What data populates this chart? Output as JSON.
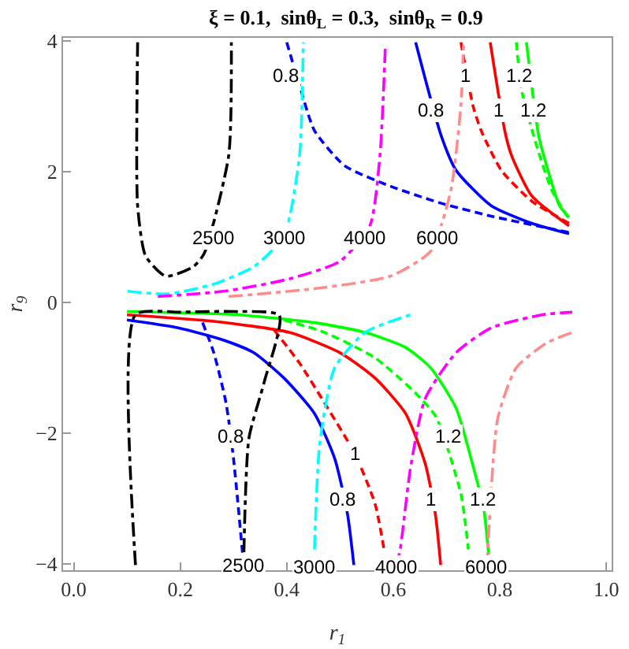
{
  "chart_data": {
    "type": "line",
    "title": "ξ = 0.1,  sinθ$_{L}$ = 0.3,  sinθ$_{R}$ = 0.9",
    "xlabel": "r$_{1}$",
    "ylabel": "r$_{9}$",
    "xlim": [
      -0.02,
      1.01
    ],
    "ylim": [
      -4.1,
      4.05
    ],
    "xticks": [
      {
        "value": 0,
        "label": "0.0"
      },
      {
        "value": 0.2,
        "label": "0.2"
      },
      {
        "value": 0.4,
        "label": "0.4"
      },
      {
        "value": 0.6,
        "label": "0.6"
      },
      {
        "value": 0.8,
        "label": "0.8"
      },
      {
        "value": 1,
        "label": "1.0"
      }
    ],
    "yticks": [
      {
        "value": -4,
        "label": "−4"
      },
      {
        "value": -2,
        "label": "−2"
      },
      {
        "value": 0,
        "label": "0"
      },
      {
        "value": 2,
        "label": "2"
      },
      {
        "value": 4,
        "label": "4"
      }
    ],
    "legend": false,
    "series": [
      {
        "color": "#0000ff",
        "line_style": "solid",
        "x": [
          0.642,
          0.69,
          0.718,
          0.784,
          0.86,
          0.93
        ],
        "values": [
          3.98,
          2.55,
          2.02,
          1.48,
          1.21,
          1.05
        ]
      },
      {
        "color": "#0000ff",
        "line_style": "dashed",
        "x": [
          0.4,
          0.424,
          0.452,
          0.509,
          0.594,
          0.689,
          0.784,
          0.93
        ],
        "values": [
          3.98,
          3.32,
          2.63,
          2.09,
          1.78,
          1.52,
          1.32,
          1.07
        ]
      },
      {
        "color": "#ff0000",
        "line_style": "dashed",
        "x": [
          0.727,
          0.75,
          0.765,
          0.803,
          0.86,
          0.93
        ],
        "values": [
          3.98,
          3.0,
          2.63,
          2.02,
          1.55,
          1.21
        ]
      },
      {
        "color": "#ff0000",
        "line_style": "solid",
        "x": [
          0.782,
          0.81,
          0.822,
          0.86,
          0.93
        ],
        "values": [
          3.98,
          2.6,
          2.25,
          1.63,
          1.17
        ]
      },
      {
        "color": "#00ff00",
        "line_style": "dashed",
        "x": [
          0.831,
          0.841,
          0.869,
          0.898,
          0.93
        ],
        "values": [
          3.98,
          3.25,
          2.4,
          1.71,
          1.28
        ]
      },
      {
        "color": "#00ff00",
        "line_style": "solid",
        "x": [
          0.85,
          0.873,
          0.888,
          0.912,
          0.93
        ],
        "values": [
          3.98,
          2.55,
          2.09,
          1.48,
          1.3
        ]
      },
      {
        "color": "#000000",
        "line_style": "dashdot",
        "x": [
          0.12,
          0.12,
          0.135,
          0.173,
          0.225,
          0.245,
          0.291,
          0.296
        ],
        "values": [
          3.98,
          1.48,
          0.71,
          0.4,
          0.55,
          0.75,
          2.25,
          3.98
        ]
      },
      {
        "color": "#00ffff",
        "line_style": "dashdot",
        "x": [
          0.101,
          0.177,
          0.263,
          0.339,
          0.395,
          0.424,
          0.431
        ],
        "values": [
          0.17,
          0.13,
          0.28,
          0.55,
          1.02,
          2.25,
          3.98
        ]
      },
      {
        "color": "#ff00ff",
        "line_style": "dashdot",
        "x": [
          0.158,
          0.282,
          0.405,
          0.5,
          0.556,
          0.575,
          0.585
        ],
        "values": [
          0.09,
          0.17,
          0.36,
          0.63,
          1.17,
          2.25,
          3.9
        ]
      },
      {
        "color": "#ff8c8c",
        "line_style": "dashdot",
        "x": [
          0.291,
          0.452,
          0.594,
          0.67,
          0.708,
          0.727,
          0.732
        ],
        "values": [
          0.09,
          0.21,
          0.4,
          0.78,
          1.71,
          3.02,
          3.98
        ]
      },
      {
        "color": "#0000ff",
        "line_style": "solid",
        "x": [
          0.1,
          0.196,
          0.282,
          0.338,
          0.395,
          0.452,
          0.49,
          0.514,
          0.526
        ],
        "values": [
          -0.27,
          -0.39,
          -0.58,
          -0.77,
          -1.16,
          -1.7,
          -2.39,
          -3.24,
          -4.02
        ]
      },
      {
        "color": "#0000ff",
        "line_style": "dashed",
        "x": [
          0.242,
          0.263,
          0.286,
          0.3,
          0.319
        ],
        "values": [
          -0.31,
          -0.77,
          -1.54,
          -2.39,
          -4.02
        ]
      },
      {
        "color": "#ff0000",
        "line_style": "solid",
        "x": [
          0.1,
          0.263,
          0.405,
          0.5,
          0.566,
          0.623,
          0.66,
          0.679,
          0.689
        ],
        "values": [
          -0.19,
          -0.29,
          -0.46,
          -0.77,
          -1.16,
          -1.7,
          -2.47,
          -3.24,
          -4.02
        ]
      },
      {
        "color": "#ff0000",
        "line_style": "dashed",
        "x": [
          0.376,
          0.424,
          0.471,
          0.528,
          0.566,
          0.583
        ],
        "values": [
          -0.42,
          -0.93,
          -1.54,
          -2.32,
          -3.09,
          -3.8
        ]
      },
      {
        "color": "#00ff00",
        "line_style": "solid",
        "x": [
          0.1,
          0.31,
          0.452,
          0.547,
          0.623,
          0.67,
          0.718,
          0.746,
          0.77,
          0.779
        ],
        "values": [
          -0.14,
          -0.19,
          -0.31,
          -0.46,
          -0.69,
          -1.0,
          -1.62,
          -2.39,
          -3.17,
          -3.86
        ]
      },
      {
        "color": "#00ff00",
        "line_style": "dashed",
        "x": [
          0.395,
          0.471,
          0.566,
          0.642,
          0.68,
          0.727,
          0.741
        ],
        "values": [
          -0.27,
          -0.46,
          -0.85,
          -1.39,
          -1.75,
          -2.93,
          -3.78
        ]
      },
      {
        "color": "#000000",
        "line_style": "dashdot",
        "x": [
          0.116,
          0.116,
          0.2,
          0.3,
          0.386,
          0.357,
          0.329,
          0.319
        ],
        "values": [
          -4.02,
          -0.19,
          -0.15,
          -0.14,
          -0.2,
          -1.24,
          -2.08,
          -4.02
        ]
      },
      {
        "color": "#00ffff",
        "line_style": "dashdot",
        "x": [
          0.452,
          0.462,
          0.49,
          0.547,
          0.632
        ],
        "values": [
          -3.78,
          -2.16,
          -1.0,
          -0.46,
          -0.19
        ]
      },
      {
        "color": "#ff00ff",
        "line_style": "dashdot",
        "x": [
          0.605,
          0.613,
          0.632,
          0.66,
          0.718,
          0.784,
          0.879,
          0.936
        ],
        "values": [
          -4.05,
          -3.78,
          -2.55,
          -1.47,
          -0.77,
          -0.39,
          -0.19,
          -0.15
        ]
      },
      {
        "color": "#ff8c8c",
        "line_style": "dashdot",
        "x": [
          0.776,
          0.779,
          0.796,
          0.831,
          0.888,
          0.936
        ],
        "values": [
          -4.05,
          -3.55,
          -1.78,
          -1.0,
          -0.62,
          -0.46
        ]
      }
    ],
    "annotations": [
      {
        "text": "0.8",
        "x": 0.4,
        "y": 3.48
      },
      {
        "text": "0.8",
        "x": 0.67,
        "y": 2.94
      },
      {
        "text": "1",
        "x": 0.737,
        "y": 3.48
      },
      {
        "text": "1",
        "x": 0.798,
        "y": 2.94
      },
      {
        "text": "1.2",
        "x": 0.836,
        "y": 3.48
      },
      {
        "text": "1.2",
        "x": 0.864,
        "y": 2.94
      },
      {
        "text": "2500",
        "x": 0.263,
        "y": 0.98
      },
      {
        "text": "3000",
        "x": 0.395,
        "y": 0.98
      },
      {
        "text": "4000",
        "x": 0.547,
        "y": 0.98
      },
      {
        "text": "6000",
        "x": 0.684,
        "y": 0.98
      },
      {
        "text": "0.8",
        "x": 0.296,
        "y": -2.05
      },
      {
        "text": "1",
        "x": 0.528,
        "y": -2.32
      },
      {
        "text": "1.2",
        "x": 0.703,
        "y": -2.05
      },
      {
        "text": "0.8",
        "x": 0.504,
        "y": -3.01
      },
      {
        "text": "1",
        "x": 0.67,
        "y": -3.01
      },
      {
        "text": "1.2",
        "x": 0.77,
        "y": -3.01
      },
      {
        "text": "2500",
        "x": 0.319,
        "y": -4.02
      },
      {
        "text": "3000",
        "x": 0.452,
        "y": -4.05
      },
      {
        "text": "4000",
        "x": 0.605,
        "y": -4.05
      },
      {
        "text": "6000",
        "x": 0.776,
        "y": -4.05
      }
    ]
  }
}
